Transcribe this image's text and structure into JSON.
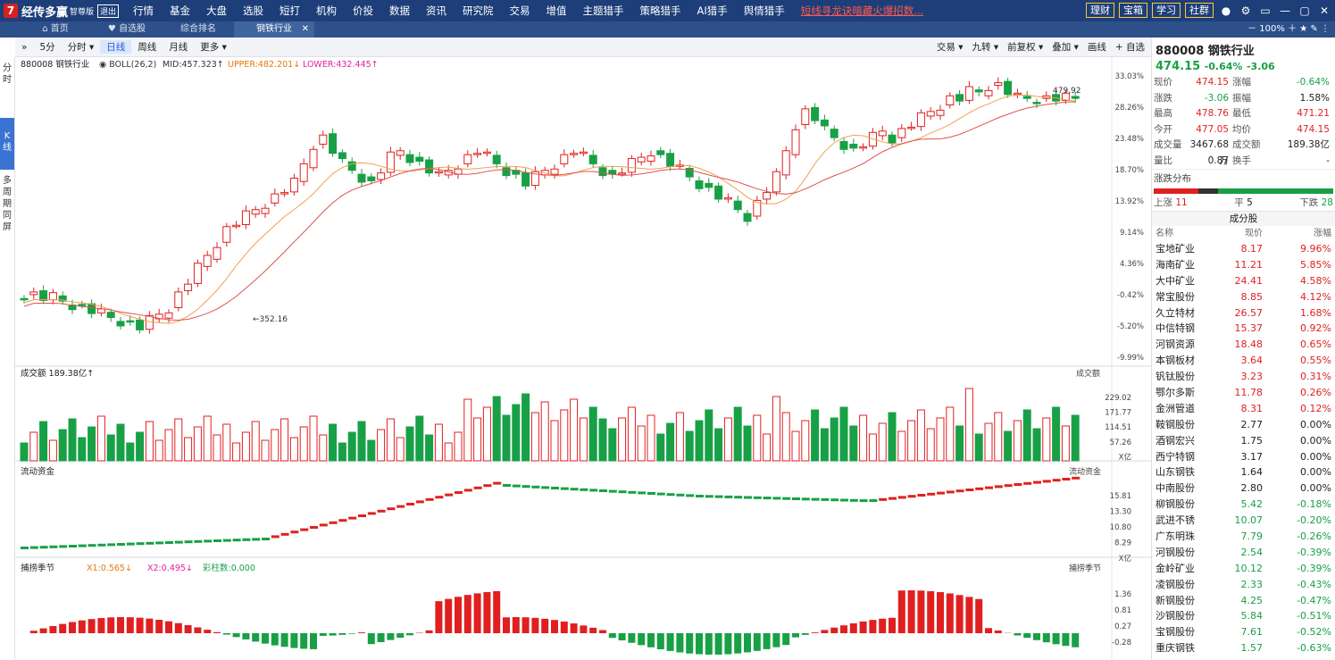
{
  "app": {
    "logo": "经传多赢",
    "edition": "智尊版",
    "exit": "退出"
  },
  "menu": [
    "行情",
    "基金",
    "大盘",
    "选股",
    "短打",
    "机构",
    "价投",
    "数据",
    "资讯",
    "研究院",
    "交易",
    "增值",
    "主题猎手",
    "策略猎手",
    "AI猎手",
    "舆情猎手"
  ],
  "ticker_ad": "短线寻龙诀暗藏火爆招数...",
  "top_buttons": [
    "理财",
    "宝箱",
    "学习",
    "社群"
  ],
  "tabs": [
    {
      "label": "首页",
      "icon": "home-icon"
    },
    {
      "label": "自选股",
      "icon": "heart-icon"
    },
    {
      "label": "综合排名",
      "icon": ""
    },
    {
      "label": "钢铁行业",
      "icon": "",
      "active": true
    }
  ],
  "zoom": "100%",
  "left_side": [
    "分时",
    "K线",
    "多周期同屏"
  ],
  "toolbar": {
    "periods": [
      "5分",
      "分时",
      "日线",
      "周线",
      "月线",
      "更多"
    ],
    "selected": "日线",
    "right": [
      "交易",
      "九转",
      "前复权",
      "叠加",
      "画线",
      "自选"
    ]
  },
  "main_header": {
    "code_name": "880008 钢铁行业",
    "indicator": "BOLL(26,2)",
    "mid": "MID:457.323",
    "upper": "UPPER:482.201",
    "lower": "LOWER:432.445"
  },
  "price_axis": [
    "33.03%",
    "28.26%",
    "23.48%",
    "18.70%",
    "13.92%",
    "9.14%",
    "4.36%",
    "-0.42%",
    "-5.20%",
    "-9.99%"
  ],
  "annotations": {
    "high": "479.92",
    "low": "352.16"
  },
  "volume": {
    "label": "成交额",
    "value": "189.38亿",
    "axis": [
      "229.02",
      "171.77",
      "114.51",
      "57.26",
      "X亿"
    ],
    "tag": "成交额"
  },
  "flow": {
    "label": "流动资金",
    "axis": [
      "15.81",
      "13.30",
      "10.80",
      "8.29",
      "X亿"
    ],
    "tag": "流动资金"
  },
  "cycle": {
    "label": "捕捞季节",
    "x1": "X1:0.565",
    "x2": "X2:0.495",
    "bars": "彩柱数:0.000",
    "axis": [
      "1.36",
      "0.81",
      "0.27",
      "-0.28"
    ],
    "tag": "捕捞季节"
  },
  "quote": {
    "title": "880008 钢铁行业",
    "price": "474.15",
    "chg": "-0.64%",
    "chgv": "-3.06",
    "rows": [
      [
        "现价",
        "474.15",
        "涨幅",
        "-0.64%"
      ],
      [
        "涨跌",
        "-3.06",
        "振幅",
        "1.58%"
      ],
      [
        "最高",
        "478.76",
        "最低",
        "471.21"
      ],
      [
        "今开",
        "477.05",
        "均价",
        "474.15"
      ],
      [
        "成交量",
        "3467.68万",
        "成交额",
        "189.38亿"
      ],
      [
        "量比",
        "0.87",
        "换手",
        "-"
      ]
    ],
    "dist_label": "涨跌分布",
    "up": "上涨",
    "up_n": "11",
    "flat": "平",
    "flat_n": "5",
    "down": "下跌",
    "down_n": "28"
  },
  "constituents": {
    "title": "成分股",
    "headers": [
      "名称",
      "现价",
      "涨幅"
    ],
    "rows": [
      [
        "宝地矿业",
        "8.17",
        "9.96%"
      ],
      [
        "海南矿业",
        "11.21",
        "5.85%"
      ],
      [
        "大中矿业",
        "24.41",
        "4.58%"
      ],
      [
        "常宝股份",
        "8.85",
        "4.12%"
      ],
      [
        "久立特材",
        "26.57",
        "1.68%"
      ],
      [
        "中信特钢",
        "15.37",
        "0.92%"
      ],
      [
        "河钢资源",
        "18.48",
        "0.65%"
      ],
      [
        "本钢板材",
        "3.64",
        "0.55%"
      ],
      [
        "钒钛股份",
        "3.23",
        "0.31%"
      ],
      [
        "鄂尔多斯",
        "11.78",
        "0.26%"
      ],
      [
        "金洲管道",
        "8.31",
        "0.12%"
      ],
      [
        "鞍钢股份",
        "2.77",
        "0.00%"
      ],
      [
        "酒钢宏兴",
        "1.75",
        "0.00%"
      ],
      [
        "西宁特钢",
        "3.17",
        "0.00%"
      ],
      [
        "山东钢铁",
        "1.64",
        "0.00%"
      ],
      [
        "中南股份",
        "2.80",
        "0.00%"
      ],
      [
        "柳钢股份",
        "5.42",
        "-0.18%"
      ],
      [
        "武进不锈",
        "10.07",
        "-0.20%"
      ],
      [
        "广东明珠",
        "7.79",
        "-0.26%"
      ],
      [
        "河钢股份",
        "2.54",
        "-0.39%"
      ],
      [
        "金岭矿业",
        "10.12",
        "-0.39%"
      ],
      [
        "凌钢股份",
        "2.33",
        "-0.43%"
      ],
      [
        "新钢股份",
        "4.25",
        "-0.47%"
      ],
      [
        "沙钢股份",
        "5.84",
        "-0.51%"
      ],
      [
        "宝钢股份",
        "7.61",
        "-0.52%"
      ],
      [
        "重庆钢铁",
        "1.57",
        "-0.63%"
      ]
    ]
  },
  "colors": {
    "up": "#e02020",
    "down": "#18a046",
    "accent": "#1d3e78"
  }
}
